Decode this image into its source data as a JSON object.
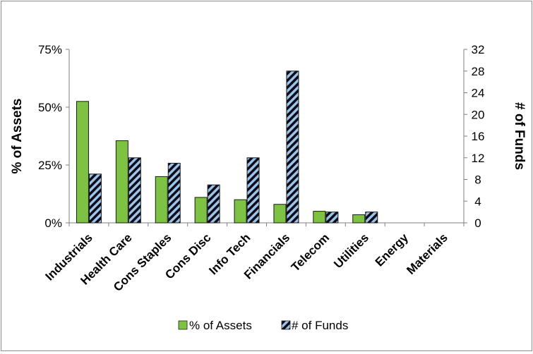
{
  "chart_data": {
    "type": "bar",
    "categories": [
      "Industrials",
      "Health Care",
      "Cons Staples",
      "Cons Disc",
      "Info Tech",
      "Financials",
      "Telecom",
      "Utilities",
      "Energy",
      "Materials"
    ],
    "series": [
      {
        "name": "% of Assets",
        "axis": "left",
        "color": "#7dc242",
        "values": [
          52.5,
          35.5,
          20,
          11,
          10,
          8,
          5,
          3.5,
          0,
          0
        ]
      },
      {
        "name": "# of Funds",
        "axis": "right",
        "color": "#9dc3e6",
        "pattern": "diagonal-stripes-dark",
        "values": [
          9,
          12,
          11,
          7,
          12,
          28,
          2,
          2,
          0,
          0
        ]
      }
    ],
    "ylabel": "% of Assets",
    "y2label": "# of Funds",
    "ylim": [
      0,
      75
    ],
    "yticks": [
      "0%",
      "25%",
      "50%",
      "75%"
    ],
    "y2lim": [
      0,
      32
    ],
    "y2ticks": [
      "0",
      "4",
      "8",
      "12",
      "16",
      "20",
      "24",
      "28",
      "32"
    ],
    "grid": false,
    "legend_position": "bottom"
  }
}
